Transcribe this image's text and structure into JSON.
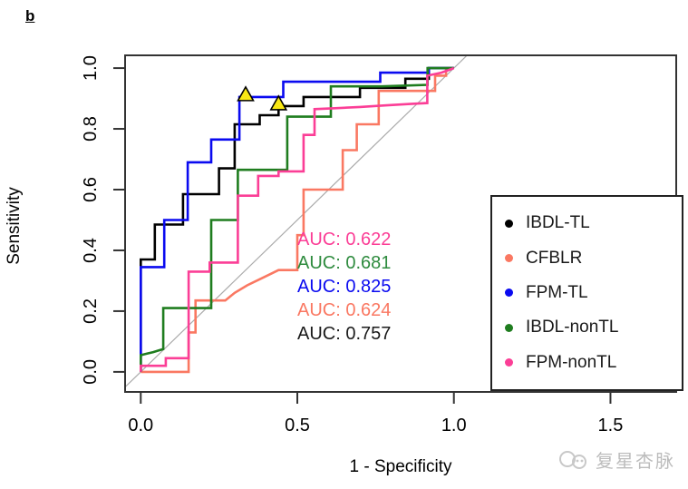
{
  "figure_label": "b",
  "watermark": {
    "text": "复星杏脉"
  },
  "chart_data": {
    "type": "line",
    "subtype": "roc-step-curves",
    "title": "",
    "xlabel": "1 - Specificity",
    "ylabel": "Sensitivity",
    "x_ticks": [
      0.0,
      0.5,
      1.0,
      1.5
    ],
    "y_ticks": [
      0.0,
      0.2,
      0.4,
      0.6,
      0.8,
      1.0
    ],
    "x_range": [
      -0.05,
      1.71
    ],
    "y_range": [
      -0.066,
      1.042
    ],
    "grid": false,
    "diagonal_reference": {
      "from": [
        0,
        0
      ],
      "to": [
        1,
        1
      ],
      "color": "#ababab"
    },
    "axis_color": "#333333",
    "series": [
      {
        "name": "IBDL-TL",
        "color": "#000000",
        "auc": 0.757,
        "points": [
          [
            0,
            0
          ],
          [
            0,
            0.37
          ],
          [
            0.045,
            0.37
          ],
          [
            0.045,
            0.485
          ],
          [
            0.135,
            0.485
          ],
          [
            0.135,
            0.585
          ],
          [
            0.25,
            0.585
          ],
          [
            0.25,
            0.67
          ],
          [
            0.3,
            0.67
          ],
          [
            0.3,
            0.815
          ],
          [
            0.38,
            0.815
          ],
          [
            0.38,
            0.845
          ],
          [
            0.44,
            0.845
          ],
          [
            0.44,
            0.875
          ],
          [
            0.52,
            0.875
          ],
          [
            0.52,
            0.905
          ],
          [
            0.7,
            0.905
          ],
          [
            0.7,
            0.935
          ],
          [
            0.845,
            0.935
          ],
          [
            0.845,
            0.965
          ],
          [
            0.92,
            0.965
          ],
          [
            0.92,
            1
          ],
          [
            1,
            1
          ]
        ]
      },
      {
        "name": "CFBLR",
        "color": "#FA7862",
        "auc": 0.624,
        "points": [
          [
            0,
            0
          ],
          [
            0.153,
            0
          ],
          [
            0.153,
            0.13
          ],
          [
            0.175,
            0.13
          ],
          [
            0.175,
            0.235
          ],
          [
            0.27,
            0.235
          ],
          [
            0.3,
            0.26
          ],
          [
            0.34,
            0.285
          ],
          [
            0.38,
            0.305
          ],
          [
            0.42,
            0.325
          ],
          [
            0.44,
            0.335
          ],
          [
            0.5,
            0.335
          ],
          [
            0.5,
            0.45
          ],
          [
            0.52,
            0.45
          ],
          [
            0.52,
            0.6
          ],
          [
            0.645,
            0.6
          ],
          [
            0.645,
            0.73
          ],
          [
            0.69,
            0.73
          ],
          [
            0.69,
            0.815
          ],
          [
            0.76,
            0.815
          ],
          [
            0.76,
            0.925
          ],
          [
            0.94,
            0.925
          ],
          [
            0.94,
            0.975
          ],
          [
            0.975,
            0.975
          ],
          [
            0.975,
            1
          ],
          [
            1,
            1
          ]
        ]
      },
      {
        "name": "FPM-TL",
        "color": "#0A0AF0",
        "auc": 0.825,
        "points": [
          [
            0,
            0
          ],
          [
            0,
            0.345
          ],
          [
            0.075,
            0.345
          ],
          [
            0.075,
            0.5
          ],
          [
            0.15,
            0.5
          ],
          [
            0.15,
            0.69
          ],
          [
            0.225,
            0.69
          ],
          [
            0.225,
            0.765
          ],
          [
            0.315,
            0.765
          ],
          [
            0.315,
            0.905
          ],
          [
            0.455,
            0.905
          ],
          [
            0.455,
            0.955
          ],
          [
            0.765,
            0.955
          ],
          [
            0.765,
            0.985
          ],
          [
            0.92,
            0.985
          ],
          [
            0.92,
            1
          ],
          [
            1,
            1
          ]
        ]
      },
      {
        "name": "IBDL-nonTL",
        "color": "#1F7D1F",
        "auc": 0.681,
        "points": [
          [
            0,
            0
          ],
          [
            0,
            0.055
          ],
          [
            0.02,
            0.06
          ],
          [
            0.04,
            0.065
          ],
          [
            0.055,
            0.07
          ],
          [
            0.072,
            0.075
          ],
          [
            0.072,
            0.21
          ],
          [
            0.225,
            0.21
          ],
          [
            0.225,
            0.5
          ],
          [
            0.31,
            0.5
          ],
          [
            0.31,
            0.665
          ],
          [
            0.468,
            0.665
          ],
          [
            0.468,
            0.84
          ],
          [
            0.607,
            0.84
          ],
          [
            0.607,
            0.94
          ],
          [
            0.77,
            0.94
          ],
          [
            0.916,
            0.945
          ],
          [
            0.916,
            1
          ],
          [
            1,
            1
          ]
        ]
      },
      {
        "name": "FPM-nonTL",
        "color": "#FB3E96",
        "auc": 0.622,
        "points": [
          [
            0,
            0
          ],
          [
            0,
            0.02
          ],
          [
            0.08,
            0.02
          ],
          [
            0.08,
            0.045
          ],
          [
            0.153,
            0.045
          ],
          [
            0.153,
            0.33
          ],
          [
            0.22,
            0.33
          ],
          [
            0.22,
            0.36
          ],
          [
            0.31,
            0.36
          ],
          [
            0.31,
            0.58
          ],
          [
            0.375,
            0.58
          ],
          [
            0.375,
            0.645
          ],
          [
            0.44,
            0.645
          ],
          [
            0.44,
            0.66
          ],
          [
            0.52,
            0.66
          ],
          [
            0.52,
            0.78
          ],
          [
            0.555,
            0.78
          ],
          [
            0.555,
            0.865
          ],
          [
            0.62,
            0.868
          ],
          [
            0.7,
            0.872
          ],
          [
            0.78,
            0.877
          ],
          [
            0.86,
            0.882
          ],
          [
            0.915,
            0.885
          ],
          [
            0.915,
            0.975
          ],
          [
            0.96,
            0.985
          ],
          [
            1,
            1
          ]
        ]
      }
    ],
    "markers": [
      {
        "shape": "triangle-up",
        "x": 0.335,
        "y": 0.905,
        "fill": "#F9E814",
        "stroke": "#000000"
      },
      {
        "shape": "triangle-up",
        "x": 0.44,
        "y": 0.875,
        "fill": "#F9E814",
        "stroke": "#000000"
      }
    ],
    "annotations": [
      {
        "text": "AUC: 0.622",
        "color": "#FB3E96"
      },
      {
        "text": "AUC: 0.681",
        "color": "#2E8B3E"
      },
      {
        "text": "AUC: 0.825",
        "color": "#0A0AF0"
      },
      {
        "text": "AUC: 0.624",
        "color": "#FA7862"
      },
      {
        "text": "AUC: 0.757",
        "color": "#1A1A1A"
      }
    ],
    "legend": {
      "position": "right",
      "items": [
        {
          "label": "IBDL-TL",
          "color": "#000000"
        },
        {
          "label": "CFBLR",
          "color": "#FA7862"
        },
        {
          "label": "FPM-TL",
          "color": "#0A0AF0"
        },
        {
          "label": "IBDL-nonTL",
          "color": "#1F7D1F"
        },
        {
          "label": "FPM-nonTL",
          "color": "#FB3E96"
        }
      ]
    }
  }
}
